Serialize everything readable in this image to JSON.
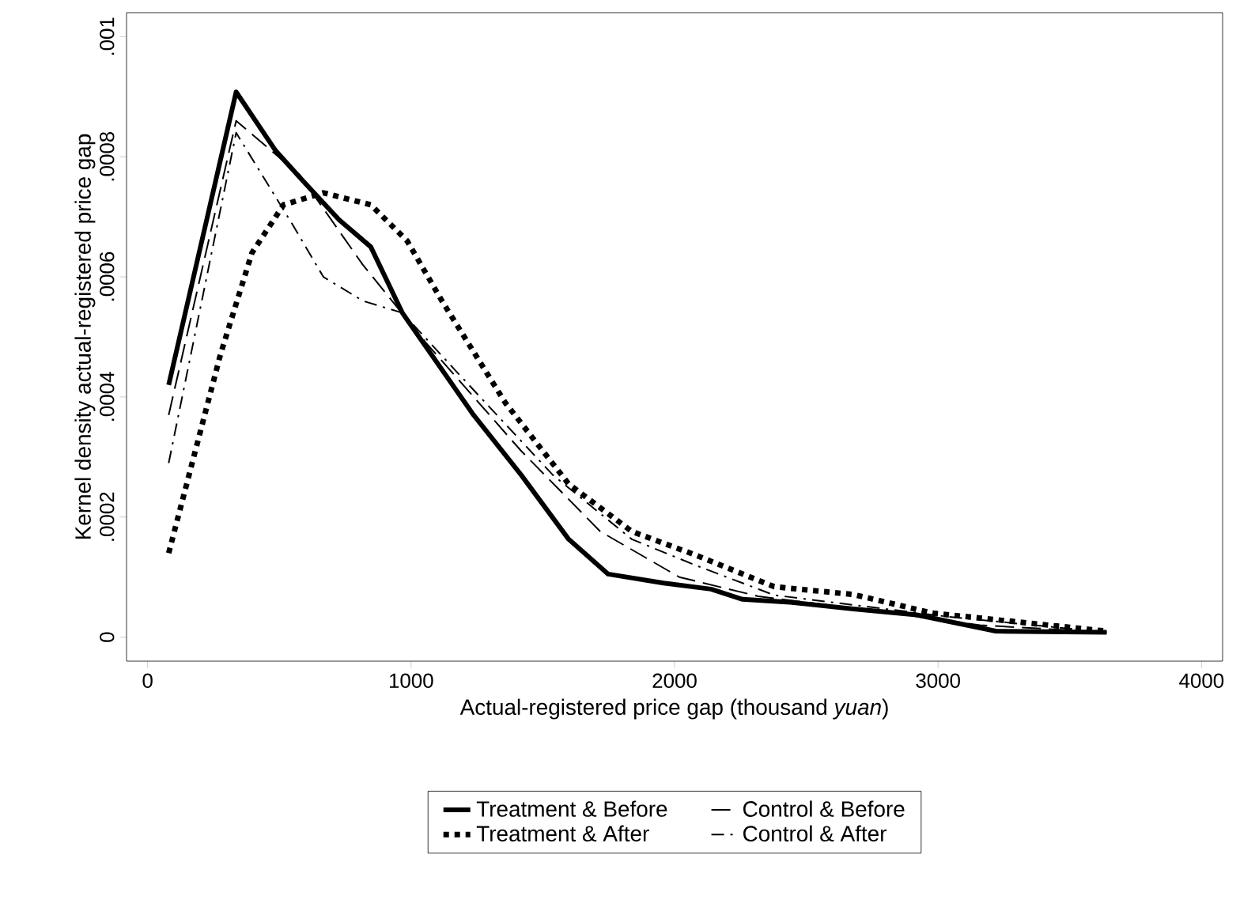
{
  "chart_data": {
    "type": "line",
    "xlabel": "Actual-registered price gap (thousand *yuan*)",
    "ylabel": "Kernel density actual-registered price gap",
    "xlim": [
      -80,
      4080
    ],
    "ylim": [
      -4e-05,
      0.00104
    ],
    "xticks": [
      0,
      1000,
      2000,
      3000,
      4000
    ],
    "yticks": [
      0,
      {
        "value": 0.0002,
        "label": ".0002"
      },
      {
        "value": 0.0004,
        "label": ".0004"
      },
      {
        "value": 0.0006,
        "label": ".0006"
      },
      {
        "value": 0.0008,
        "label": ".0008"
      },
      {
        "value": 0.001,
        "label": ".001"
      }
    ],
    "legend": "bottom",
    "grid": false,
    "marker": "none",
    "series": [
      {
        "name": "Treatment & Before",
        "color": "#000000",
        "line_style": "solid",
        "x": [
          80,
          336,
          486,
          589,
          727,
          847,
          967,
          1237,
          1418,
          1598,
          1748,
          1958,
          2138,
          2258,
          2438,
          2679,
          2919,
          3219,
          3640
        ],
        "values": [
          0.00042,
          0.000908,
          0.00081,
          0.00076,
          0.000695,
          0.00065,
          0.00054,
          0.00037,
          0.00027,
          0.000163,
          0.000105,
          9e-05,
          8e-05,
          6.3e-05,
          5.8e-05,
          4.7e-05,
          3.7e-05,
          1e-05,
          8e-06
        ]
      },
      {
        "name": "Control & Before",
        "color": "#000000",
        "line_style": "dashed",
        "x": [
          80,
          336,
          577,
          817,
          1057,
          1418,
          1718,
          2018,
          2318,
          2739,
          3159,
          3640
        ],
        "values": [
          0.00037,
          0.00086,
          0.00077,
          0.00062,
          0.00049,
          0.00031,
          0.000176,
          0.0001,
          6.8e-05,
          4.5e-05,
          2e-05,
          8e-06
        ]
      },
      {
        "name": "Treatment & After",
        "color": "#000000",
        "line_style": "dotted",
        "x": [
          80,
          276,
          396,
          516,
          667,
          847,
          985,
          1117,
          1358,
          1598,
          1838,
          2078,
          2378,
          2679,
          2979,
          3640
        ],
        "values": [
          0.00014,
          0.00047,
          0.00064,
          0.00072,
          0.00074,
          0.00072,
          0.00066,
          0.00056,
          0.00039,
          0.000255,
          0.000176,
          0.000137,
          8.4e-05,
          7.1e-05,
          4e-05,
          1e-05
        ]
      },
      {
        "name": "Control & After",
        "color": "#000000",
        "line_style": "dashdot",
        "x": [
          80,
          336,
          546,
          667,
          817,
          967,
          1177,
          1538,
          1838,
          2078,
          2378,
          3039,
          3640
        ],
        "values": [
          0.00029,
          0.00084,
          0.00069,
          0.0006,
          0.00056,
          0.00054,
          0.00044,
          0.00027,
          0.000163,
          0.00012,
          7e-05,
          3.4e-05,
          8e-06
        ]
      }
    ]
  }
}
